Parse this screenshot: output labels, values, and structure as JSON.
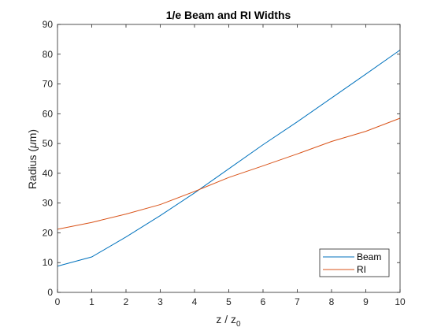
{
  "chart_data": {
    "type": "line",
    "title": "1/e Beam and RI Widths",
    "xlabel_main": "z / z",
    "xlabel_sub": "0",
    "ylabel_prefix": "Radius (",
    "ylabel_mu": "μ",
    "ylabel_suffix": "m)",
    "xlim": [
      0,
      10
    ],
    "ylim": [
      0,
      90
    ],
    "x_ticks": [
      "0",
      "1",
      "2",
      "3",
      "4",
      "5",
      "6",
      "7",
      "8",
      "9",
      "10"
    ],
    "y_ticks": [
      "0",
      "10",
      "20",
      "30",
      "40",
      "50",
      "60",
      "70",
      "80",
      "90"
    ],
    "grid": false,
    "legend_position": "bottom-right",
    "x": [
      0,
      1,
      2,
      3,
      4,
      5,
      6,
      7,
      8,
      9,
      10
    ],
    "series": [
      {
        "name": "Beam",
        "color": "#0072bd",
        "values": [
          8.8,
          11.9,
          18.6,
          25.8,
          33.4,
          41.5,
          49.6,
          57.3,
          65.3,
          73.3,
          81.4
        ]
      },
      {
        "name": "RI",
        "color": "#d95319",
        "values": [
          21.2,
          23.5,
          26.3,
          29.5,
          33.9,
          38.6,
          42.5,
          46.5,
          50.7,
          54.1,
          58.5
        ]
      }
    ]
  }
}
